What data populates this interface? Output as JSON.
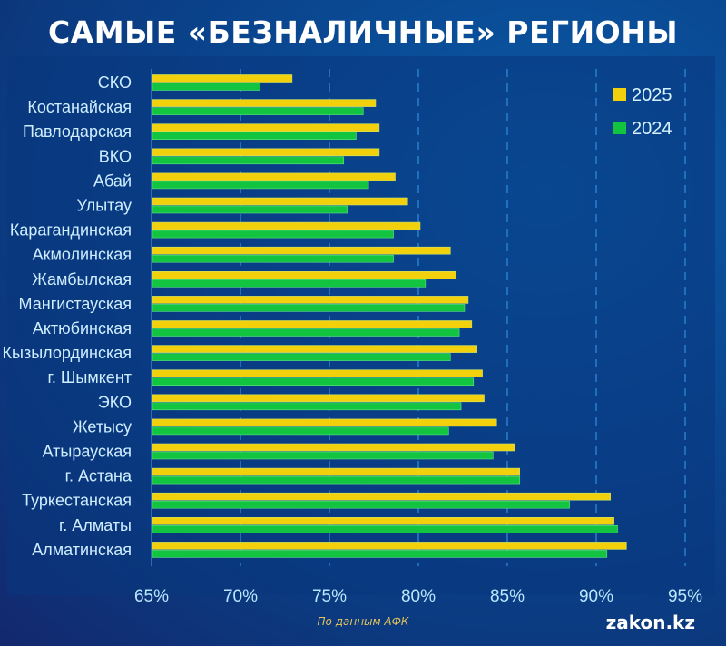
{
  "header": {
    "title": "САМЫЕ «БЕЗНАЛИЧНЫЕ» РЕГИОНЫ"
  },
  "footer": {
    "source": "По данным АФК",
    "brand": "zakon.kz"
  },
  "colors": {
    "series_2025": "#f2d00c",
    "series_2024": "#12c440",
    "gridline": "#2f8ee0",
    "axis": "#3d7cc8"
  },
  "chart_data": {
    "type": "bar",
    "orientation": "horizontal",
    "title": "САМЫЕ «БЕЗНАЛИЧНЫЕ» РЕГИОНЫ",
    "xlabel": "",
    "ylabel": "",
    "xlim": [
      65,
      95
    ],
    "x_ticks": [
      65,
      70,
      75,
      80,
      85,
      90,
      95
    ],
    "x_tick_labels": [
      "65%",
      "70%",
      "75%",
      "80%",
      "85%",
      "90%",
      "95%"
    ],
    "grid": true,
    "legend_position": "top-right",
    "categories": [
      "СКО",
      "Костанайская",
      "Павлодарская",
      "ВКО",
      "Абай",
      "Улытау",
      "Карагандинская",
      "Акмолинская",
      "Жамбылская",
      "Мангистауская",
      "Актюбинская",
      "Кызылординская",
      "г. Шымкент",
      "ЭКО",
      "Жетысу",
      "Атырауская",
      "г. Астана",
      "Туркестанская",
      "г. Алматы",
      "Алматинская"
    ],
    "series": [
      {
        "name": "2025",
        "values": [
          72.9,
          77.6,
          77.8,
          77.8,
          78.7,
          79.4,
          80.1,
          81.8,
          82.1,
          82.8,
          83.0,
          83.3,
          83.6,
          83.7,
          84.4,
          85.4,
          85.7,
          90.8,
          91.0,
          91.7
        ]
      },
      {
        "name": "2024",
        "values": [
          71.1,
          76.9,
          76.5,
          75.8,
          77.2,
          76.0,
          78.6,
          78.6,
          80.4,
          82.6,
          82.3,
          81.8,
          83.1,
          82.4,
          81.7,
          84.2,
          85.7,
          88.5,
          91.2,
          90.6
        ]
      }
    ]
  }
}
